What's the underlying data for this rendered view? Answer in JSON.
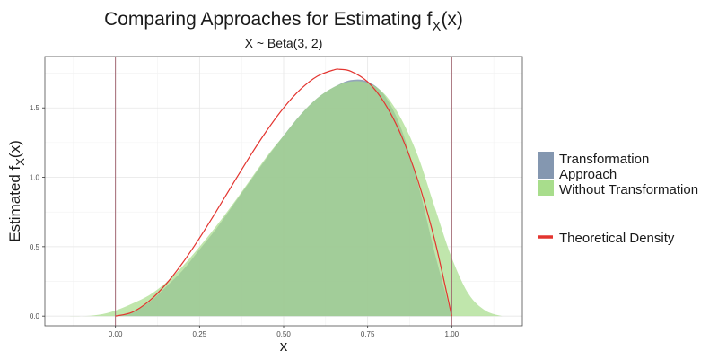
{
  "chart_data": {
    "type": "area",
    "title": "Comparing Approaches for Estimating f",
    "title_sub_x": "X",
    "title_suffix": "(x)",
    "subtitle": "X ~  Beta(3, 2)",
    "xlabel": "x",
    "ylabel": "Estimated f",
    "ylabel_sub": "X",
    "ylabel_suffix": "(x)",
    "xlim": [
      -0.21,
      1.21
    ],
    "ylim": [
      -0.07,
      1.87
    ],
    "xticks": [
      0.0,
      0.25,
      0.5,
      0.75,
      1.0
    ],
    "xtick_labels": [
      "0.00",
      "0.25",
      "0.50",
      "0.75",
      "1.00"
    ],
    "yticks": [
      0.0,
      0.5,
      1.0,
      1.5
    ],
    "ytick_labels": [
      "0.0",
      "0.5",
      "1.0",
      "1.5"
    ],
    "vlines": [
      0.0,
      1.0
    ],
    "grid": true,
    "legend_position": "right",
    "series": [
      {
        "name": "Transformation Approach",
        "kind": "area",
        "color": "#8497b0",
        "x": [
          0.0,
          0.05,
          0.1,
          0.15,
          0.2,
          0.25,
          0.3,
          0.35,
          0.4,
          0.45,
          0.5,
          0.55,
          0.6,
          0.65,
          0.7,
          0.75,
          0.8,
          0.85,
          0.9,
          0.95,
          1.0
        ],
        "y": [
          0.0,
          0.03,
          0.1,
          0.21,
          0.33,
          0.48,
          0.63,
          0.8,
          0.97,
          1.14,
          1.3,
          1.45,
          1.57,
          1.65,
          1.7,
          1.69,
          1.59,
          1.35,
          0.95,
          0.45,
          0.0
        ]
      },
      {
        "name": "Without Transformation",
        "kind": "area",
        "color": "#a8dd8c",
        "x": [
          -0.15,
          -0.1,
          -0.05,
          0.0,
          0.05,
          0.1,
          0.15,
          0.2,
          0.25,
          0.3,
          0.35,
          0.4,
          0.45,
          0.5,
          0.55,
          0.6,
          0.65,
          0.7,
          0.75,
          0.8,
          0.85,
          0.9,
          0.95,
          1.0,
          1.05,
          1.1,
          1.15
        ],
        "y": [
          0.0,
          0.0,
          0.01,
          0.04,
          0.09,
          0.15,
          0.24,
          0.36,
          0.5,
          0.65,
          0.81,
          0.98,
          1.15,
          1.3,
          1.45,
          1.57,
          1.65,
          1.69,
          1.68,
          1.6,
          1.42,
          1.15,
          0.78,
          0.42,
          0.16,
          0.04,
          0.0
        ]
      },
      {
        "name": "Theoretical Density",
        "kind": "line",
        "color": "#e3342f",
        "formula": "12 * x^2 * (1 - x)",
        "x": [
          0.0,
          0.05,
          0.1,
          0.15,
          0.2,
          0.25,
          0.3,
          0.35,
          0.4,
          0.45,
          0.5,
          0.55,
          0.6,
          0.65,
          0.6667,
          0.7,
          0.75,
          0.8,
          0.85,
          0.9,
          0.95,
          1.0
        ],
        "y": [
          0.0,
          0.0285,
          0.108,
          0.2295,
          0.384,
          0.5625,
          0.756,
          0.9555,
          1.152,
          1.3365,
          1.5,
          1.6335,
          1.728,
          1.7745,
          1.7778,
          1.764,
          1.6875,
          1.536,
          1.3005,
          0.972,
          0.5415,
          0.0
        ]
      }
    ],
    "overlap_color": "#7db87a",
    "legend": {
      "fill_entries": [
        "Transformation",
        "Approach",
        "Without Transformation"
      ],
      "line_entry": "Theoretical Density"
    }
  }
}
